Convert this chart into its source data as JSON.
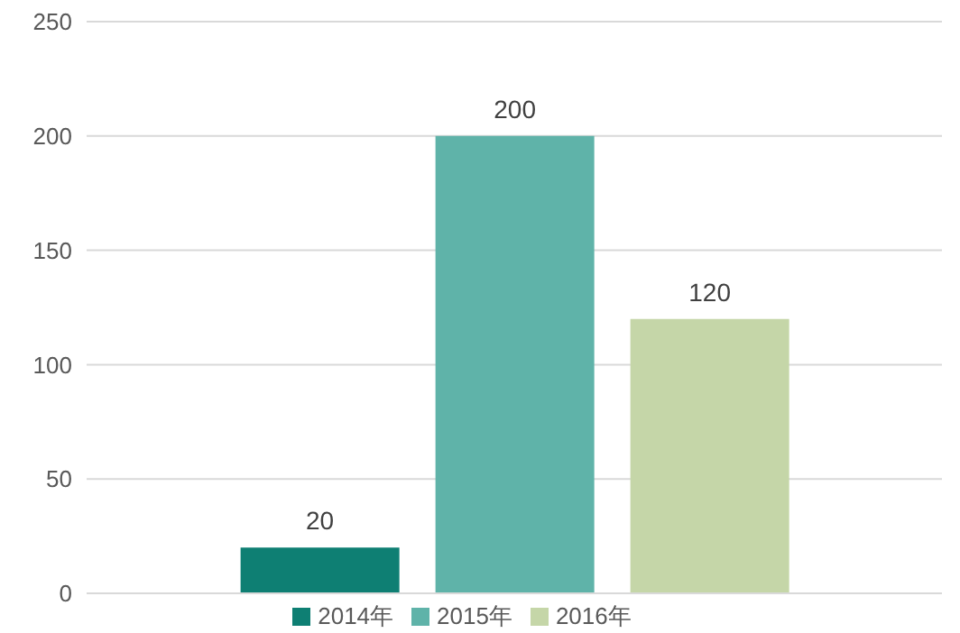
{
  "chart_data": {
    "type": "bar",
    "categories": [
      null
    ],
    "series": [
      {
        "name": "2014年",
        "color": "#0e7f73",
        "values": [
          20
        ]
      },
      {
        "name": "2015年",
        "color": "#5fb3a9",
        "values": [
          200
        ]
      },
      {
        "name": "2016年",
        "color": "#c5d6a8",
        "values": [
          120
        ]
      }
    ],
    "ylim": [
      0,
      250
    ],
    "yticks": [
      0,
      50,
      100,
      150,
      200,
      250
    ],
    "grid": "y",
    "legend": "bottom",
    "data_labels": true
  }
}
